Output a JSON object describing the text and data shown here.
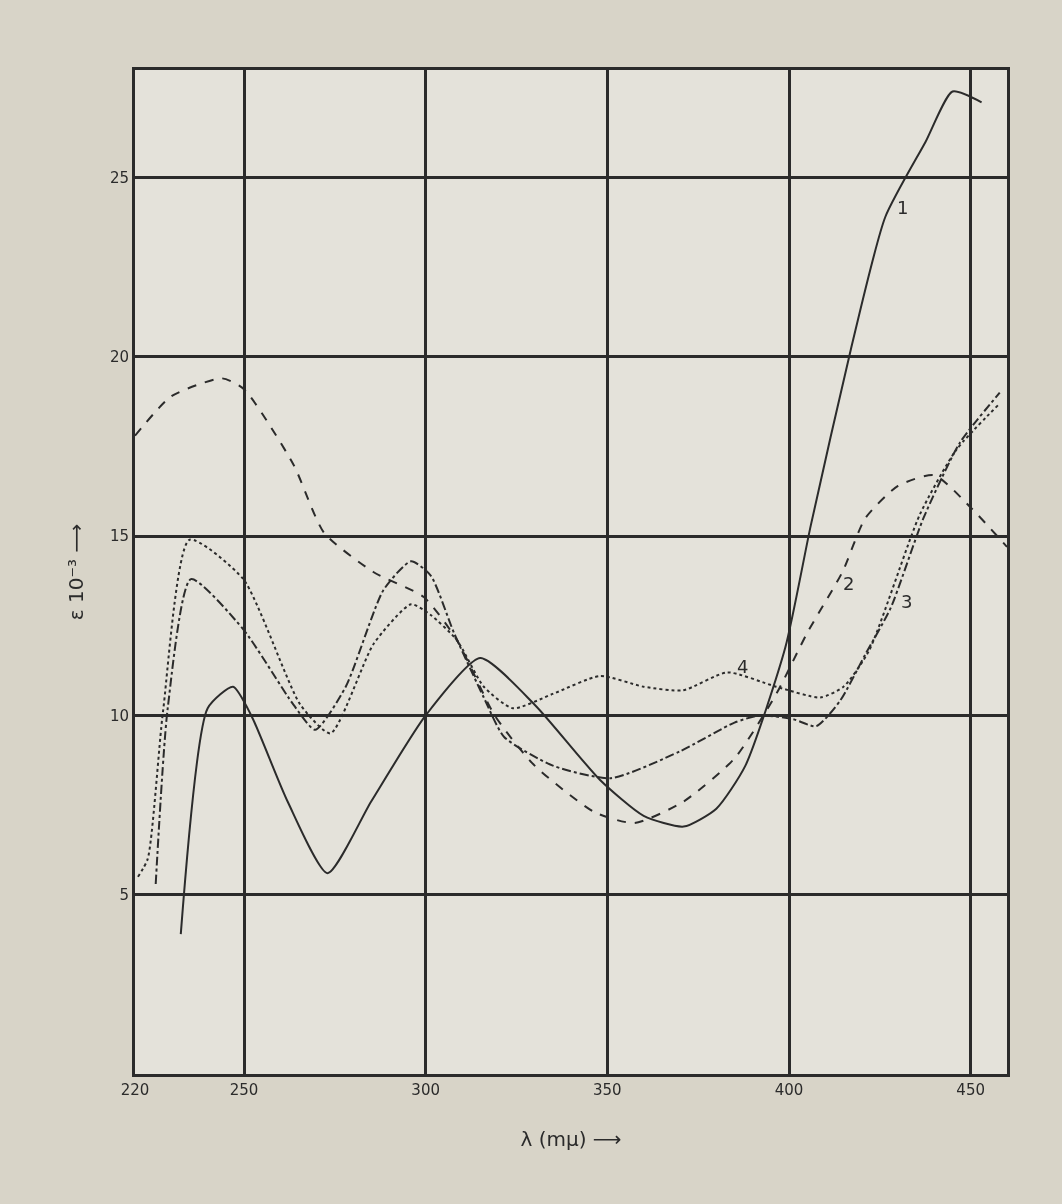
{
  "chart_data": {
    "type": "line",
    "xlabel": "λ (mμ) ⟶",
    "ylabel": "ε 10⁻³ ⟶",
    "xlim": [
      220,
      460
    ],
    "xticks": [
      220,
      250,
      300,
      350,
      400,
      450
    ],
    "ylim": [
      0,
      28
    ],
    "yticks": [
      5,
      10,
      15,
      20,
      25
    ],
    "grid": true,
    "marker": "none",
    "series": [
      {
        "color": "#2b2b2b",
        "line_style": "solid",
        "x": [
          232.6,
          240,
          247,
          252,
          262,
          273,
          285,
          300,
          315,
          330,
          348,
          360,
          371,
          380,
          388,
          399,
          406,
          417,
          426.5,
          437.6,
          445,
          453
        ],
        "values": [
          3.9,
          10.2,
          10.8,
          10.0,
          7.6,
          5.6,
          7.6,
          10.0,
          11.6,
          10.3,
          8.2,
          7.2,
          6.9,
          7.4,
          8.6,
          11.9,
          15.3,
          20.2,
          23.9,
          26.0,
          27.4,
          27.1
        ]
      },
      {
        "color": "#2b2b2b",
        "line_style": "dashed",
        "x": [
          220,
          230,
          244,
          250,
          263.6,
          272,
          285.6,
          299.5,
          308.6,
          319,
          330,
          346.5,
          357.5,
          371,
          385,
          396.5,
          405,
          414.7,
          421,
          430,
          440,
          450,
          460
        ],
        "values": [
          17.8,
          18.9,
          19.4,
          19.1,
          17.0,
          15.1,
          14.0,
          13.3,
          12.1,
          10.0,
          8.6,
          7.3,
          7.0,
          7.6,
          8.8,
          10.6,
          12.3,
          14.0,
          15.5,
          16.4,
          16.7,
          15.8,
          14.7
        ]
      },
      {
        "color": "#2b2b2b",
        "line_style": "dashdot",
        "x": [
          225.7,
          229,
          235.4,
          249.8,
          263.6,
          269.6,
          278,
          288.4,
          296,
          301.4,
          307.8,
          316,
          321.6,
          335,
          351,
          370,
          385,
          392,
          401,
          407.5,
          414,
          421,
          428,
          437,
          447,
          458
        ],
        "values": [
          5.3,
          10.2,
          13.8,
          12.4,
          10.3,
          9.6,
          10.8,
          13.5,
          14.3,
          13.9,
          12.3,
          10.5,
          9.4,
          8.6,
          8.25,
          9.0,
          9.8,
          10.0,
          9.9,
          9.7,
          10.4,
          11.7,
          13.0,
          15.5,
          17.6,
          19.0
        ]
      },
      {
        "color": "#2b2b2b",
        "line_style": "dotted",
        "x": [
          220.8,
          223.5,
          227.7,
          235,
          249.8,
          265.5,
          273.8,
          285.7,
          296,
          301.4,
          308.6,
          316,
          324,
          335,
          348,
          360,
          370.8,
          383,
          396.5,
          408.6,
          415,
          422,
          436,
          446,
          458
        ],
        "values": [
          5.5,
          6.0,
          10.1,
          14.9,
          13.8,
          10.3,
          9.5,
          12.0,
          13.1,
          12.8,
          12.1,
          10.8,
          10.2,
          10.6,
          11.1,
          10.8,
          10.7,
          11.2,
          10.8,
          10.5,
          10.8,
          11.8,
          15.6,
          17.4,
          18.7
        ]
      }
    ],
    "annotations": [
      {
        "text": "1",
        "x": 427,
        "y": 24
      },
      {
        "text": "2",
        "x": 412,
        "y": 13.5
      },
      {
        "text": "3",
        "x": 428,
        "y": 13
      },
      {
        "text": "4",
        "x": 383,
        "y": 11.2
      }
    ]
  }
}
